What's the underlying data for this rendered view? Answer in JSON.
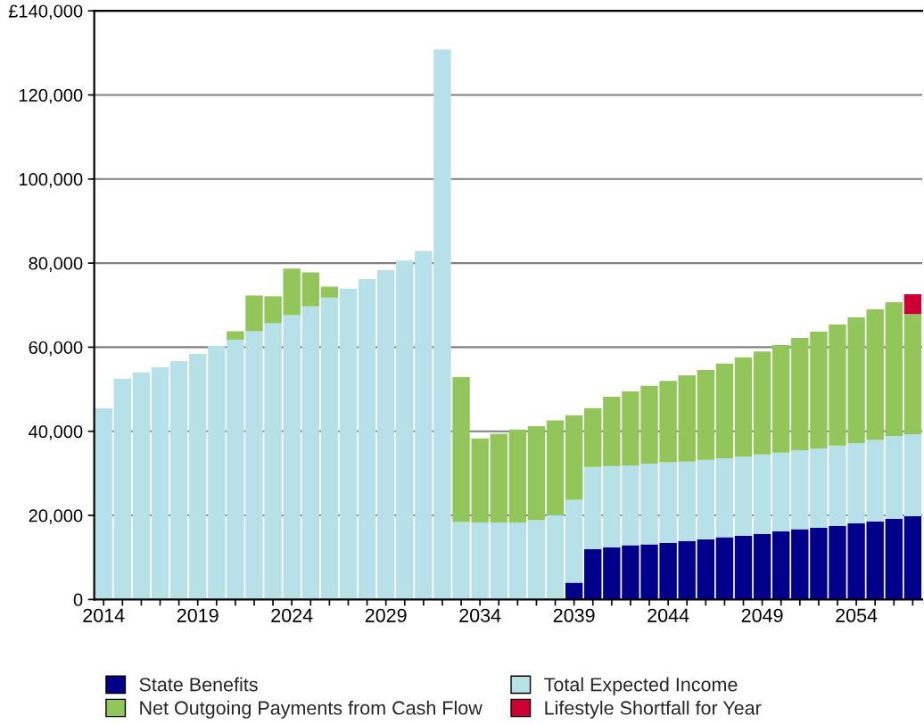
{
  "chart_data": {
    "type": "bar",
    "stacked": true,
    "categories": [
      "2014",
      null,
      null,
      null,
      null,
      "2019",
      null,
      null,
      null,
      null,
      "2024",
      null,
      null,
      null,
      null,
      "2029",
      null,
      null,
      null,
      null,
      "2034",
      null,
      null,
      null,
      null,
      "2039",
      null,
      null,
      null,
      null,
      "2044",
      null,
      null,
      null,
      null,
      "2049",
      null,
      null,
      null,
      null,
      "2054",
      null,
      null,
      null
    ],
    "series": [
      {
        "name": "State Benefits",
        "color": "#00008b",
        "values": [
          null,
          null,
          null,
          null,
          null,
          null,
          null,
          null,
          null,
          null,
          null,
          null,
          null,
          null,
          null,
          null,
          null,
          null,
          null,
          null,
          null,
          null,
          null,
          null,
          null,
          4000,
          12000,
          12400,
          12900,
          13100,
          13500,
          13900,
          14300,
          14800,
          15200,
          15600,
          16200,
          16700,
          17100,
          17500,
          18100,
          18600,
          19200,
          19800
        ]
      },
      {
        "name": "Total Expected Income",
        "color": "#b7e1e9",
        "values": [
          45500,
          52500,
          54000,
          55200,
          56700,
          58400,
          60300,
          61800,
          63800,
          65700,
          67600,
          69700,
          71800,
          73900,
          76200,
          78300,
          80600,
          82900,
          130800,
          18400,
          18300,
          18300,
          18300,
          18900,
          20100,
          19700,
          19500,
          19300,
          19000,
          19200,
          19100,
          18900,
          18900,
          18800,
          18800,
          18900,
          18700,
          18800,
          18800,
          19100,
          19100,
          19300,
          19700,
          19500
        ]
      },
      {
        "name": "Net Outgoing Payments from Cash Flow",
        "color": "#92c65a",
        "values": [
          null,
          null,
          null,
          null,
          null,
          null,
          null,
          2000,
          8500,
          6400,
          11100,
          8100,
          2600,
          null,
          null,
          null,
          null,
          null,
          null,
          34500,
          20000,
          21100,
          22100,
          22300,
          22500,
          20100,
          14000,
          16500,
          17600,
          18500,
          19400,
          20500,
          21400,
          22500,
          23600,
          24500,
          25600,
          26700,
          27800,
          28800,
          29900,
          31100,
          31800,
          28600
        ]
      },
      {
        "name": "Lifestyle Shortfall for Year",
        "color": "#cc0033",
        "values": [
          null,
          null,
          null,
          null,
          null,
          null,
          null,
          null,
          null,
          null,
          null,
          null,
          null,
          null,
          null,
          null,
          null,
          null,
          null,
          null,
          null,
          null,
          null,
          null,
          null,
          null,
          null,
          null,
          null,
          null,
          null,
          null,
          null,
          null,
          null,
          null,
          null,
          null,
          null,
          null,
          null,
          null,
          null,
          4700
        ]
      }
    ],
    "ylim": [
      0,
      140000
    ],
    "yticks": [
      0,
      {
        "value": 20000,
        "label": "20,000"
      },
      {
        "value": 40000,
        "label": "40,000"
      },
      {
        "value": 60000,
        "label": "60,000"
      },
      {
        "value": 80000,
        "label": "80,000"
      },
      {
        "value": 100000,
        "label": "100,000"
      },
      {
        "value": 120000,
        "label": "120,000"
      },
      {
        "value": 140000,
        "label": "£140,000"
      }
    ],
    "grid": "y",
    "legend": "bottom"
  }
}
